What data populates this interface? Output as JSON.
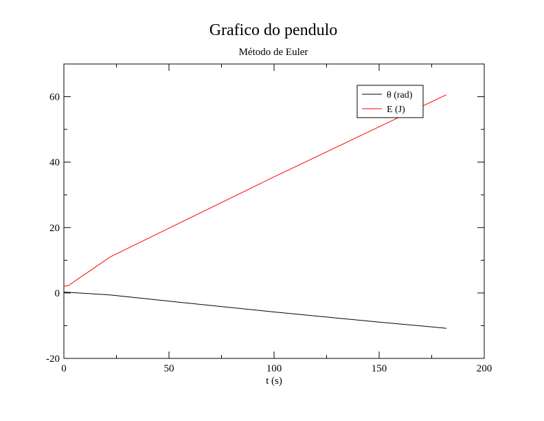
{
  "chart_data": {
    "type": "line",
    "title": "Grafico do pendulo",
    "subtitle": "Método de Euler",
    "xlabel": "t (s)",
    "ylabel": "",
    "xlim": [
      0,
      200
    ],
    "ylim": [
      -20,
      70
    ],
    "x_ticks": [
      0,
      50,
      100,
      150,
      200
    ],
    "x_tick_labels": [
      "0",
      "50",
      "100",
      "150",
      "200"
    ],
    "y_ticks": [
      -20,
      0,
      20,
      40,
      60
    ],
    "y_tick_labels": [
      "-20",
      "0",
      "20",
      "40",
      "60"
    ],
    "grid": false,
    "legend_position": "top-right",
    "series": [
      {
        "name": "θ (rad)",
        "color": "#000000",
        "x": [
          0,
          2,
          22,
          50,
          100,
          150,
          182
        ],
        "y": [
          0.3,
          0.2,
          -0.6,
          -2.5,
          -5.8,
          -8.9,
          -10.8
        ]
      },
      {
        "name": "E (J)",
        "color": "#ff0000",
        "x": [
          0,
          2,
          22,
          50,
          100,
          150,
          182
        ],
        "y": [
          2.1,
          2.2,
          11.0,
          19.8,
          35.5,
          50.8,
          60.6
        ]
      }
    ]
  }
}
